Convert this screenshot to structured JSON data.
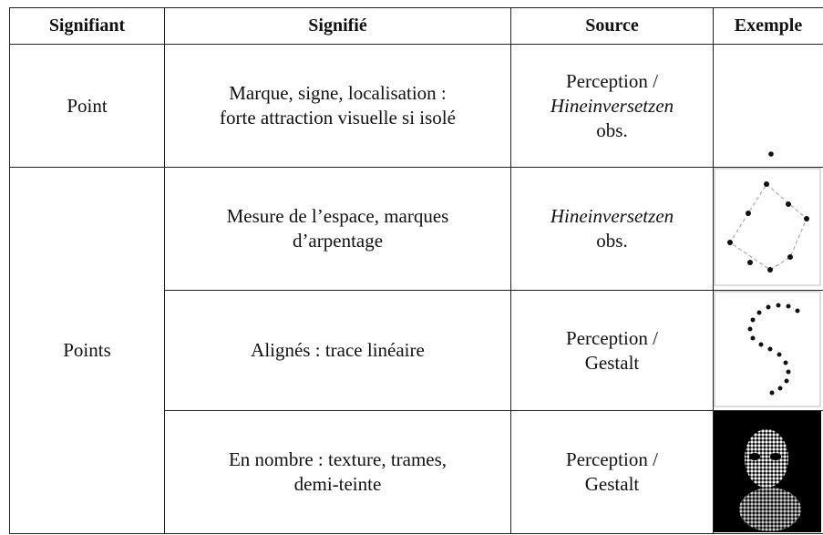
{
  "table": {
    "header": [
      "Signifiant",
      "Signifié",
      "Source",
      "Exemple"
    ],
    "groups": [
      {
        "signifiant": "Point",
        "rows": [
          {
            "signifie": [
              "Marque, signe, localisation :",
              "forte attraction visuelle si isolé"
            ],
            "source": [
              "Perception /",
              "Hineinversetzen",
              "obs."
            ]
          }
        ]
      },
      {
        "signifiant": "Points",
        "rows": [
          {
            "signifie": [
              "Mesure de l’espace, marques",
              "d’arpentage"
            ],
            "source": [
              "Hineinversetzen",
              "obs."
            ]
          },
          {
            "signifie": [
              "Alignés : trace linéaire"
            ],
            "source": [
              "Perception /",
              "Gestalt"
            ]
          },
          {
            "signifie": [
              "En nombre : texture, trames,",
              "demi-teinte"
            ],
            "source": [
              "Perception /",
              "Gestalt"
            ]
          }
        ]
      }
    ]
  }
}
